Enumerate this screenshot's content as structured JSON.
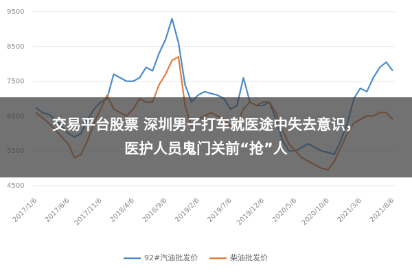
{
  "chart_data": {
    "type": "line",
    "categories": [
      "2017/1/6",
      null,
      null,
      null,
      null,
      "2017/6/6",
      null,
      null,
      null,
      null,
      "2017/11/6",
      null,
      null,
      null,
      null,
      "2018/4/6",
      null,
      null,
      null,
      null,
      "2018/9/6",
      null,
      null,
      null,
      null,
      "2019/2/6",
      null,
      null,
      null,
      null,
      "2019/7/6",
      null,
      null,
      null,
      null,
      "2019/12/6",
      null,
      null,
      null,
      null,
      "2020/5/6",
      null,
      null,
      null,
      null,
      "2020/10/6",
      null,
      null,
      null,
      null,
      "2021/3/6",
      null,
      null,
      null,
      null,
      "2021/8/6"
    ],
    "series": [
      {
        "name": "92#汽油批发价",
        "color": "#4a8bc8",
        "values": [
          6750,
          6600,
          6550,
          6400,
          6200,
          6000,
          5900,
          6000,
          6400,
          6700,
          6900,
          7000,
          7700,
          7600,
          7500,
          7500,
          7600,
          7900,
          7800,
          8300,
          8700,
          9300,
          8600,
          7400,
          6900,
          7100,
          7200,
          7150,
          7100,
          7000,
          6700,
          6800,
          7600,
          6900,
          6800,
          6800,
          6900,
          6400,
          5800,
          5500,
          5500,
          5600,
          5700,
          5600,
          5500,
          5450,
          5400,
          5800,
          6300,
          7000,
          7300,
          7200,
          7600,
          7900,
          8050,
          7800
        ]
      },
      {
        "name": "柴油批发价",
        "color": "#e07b39",
        "values": [
          6600,
          6450,
          6300,
          6100,
          5900,
          5700,
          5300,
          5400,
          5800,
          6300,
          6700,
          7100,
          6700,
          6600,
          6500,
          6700,
          7000,
          6900,
          6900,
          7400,
          7700,
          8100,
          8200,
          6800,
          6200,
          6400,
          6500,
          6600,
          6500,
          6400,
          6200,
          6300,
          6700,
          6900,
          6800,
          6900,
          6900,
          6600,
          6100,
          5700,
          5500,
          5300,
          5200,
          5100,
          5000,
          4950,
          5200,
          5600,
          6000,
          6300,
          6400,
          6500,
          6500,
          6600,
          6600,
          6400
        ]
      }
    ],
    "ylim": [
      4500,
      9500
    ],
    "yticks": [
      4500,
      5500,
      6500,
      7500,
      8500,
      9500
    ],
    "grid": true,
    "legend": "bottom",
    "annotation": [
      "交易平台股票 深圳男子打车就医途中失去意识，",
      "医护人员鬼门关前“抢”人"
    ]
  }
}
